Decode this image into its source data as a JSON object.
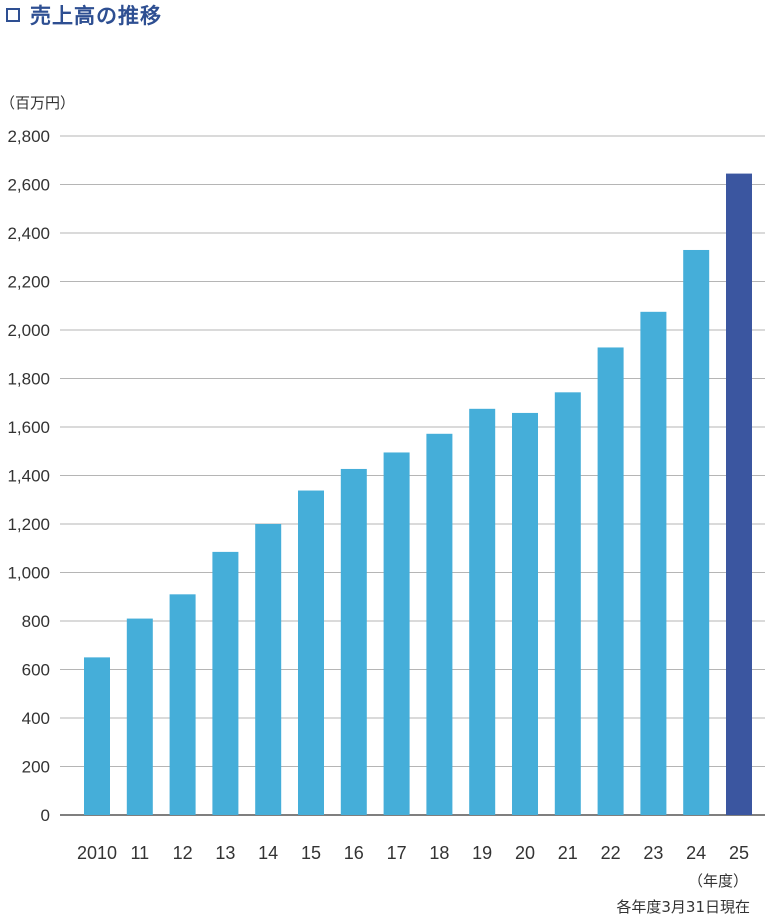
{
  "title": "売上高の推移",
  "unit_label": "（百万円）",
  "fiscal_year_label": "（年度）",
  "note": "各年度3月31日現在",
  "colors": {
    "bar": "#45aed9",
    "highlight_bar": "#3b56a0",
    "grid": "#b5b5b5",
    "title": "#2e4f92"
  },
  "chart_data": {
    "type": "bar",
    "title": "売上高の推移",
    "ylabel": "（百万円）",
    "xlabel": "（年度）",
    "categories": [
      "2010",
      "11",
      "12",
      "13",
      "14",
      "15",
      "16",
      "17",
      "18",
      "19",
      "20",
      "21",
      "22",
      "23",
      "24",
      "25"
    ],
    "values": [
      650,
      810,
      910,
      1085,
      1200,
      1338,
      1427,
      1495,
      1572,
      1675,
      1658,
      1743,
      1928,
      2075,
      2330,
      2645
    ],
    "highlight_index": 15,
    "ylim": [
      0,
      2800
    ],
    "yticks": [
      "0",
      "200",
      "400",
      "600",
      "800",
      "1,000",
      "1,200",
      "1,400",
      "1,600",
      "1,800",
      "2,000",
      "2,200",
      "2,400",
      "2,600",
      "2,800"
    ],
    "grid": true
  }
}
